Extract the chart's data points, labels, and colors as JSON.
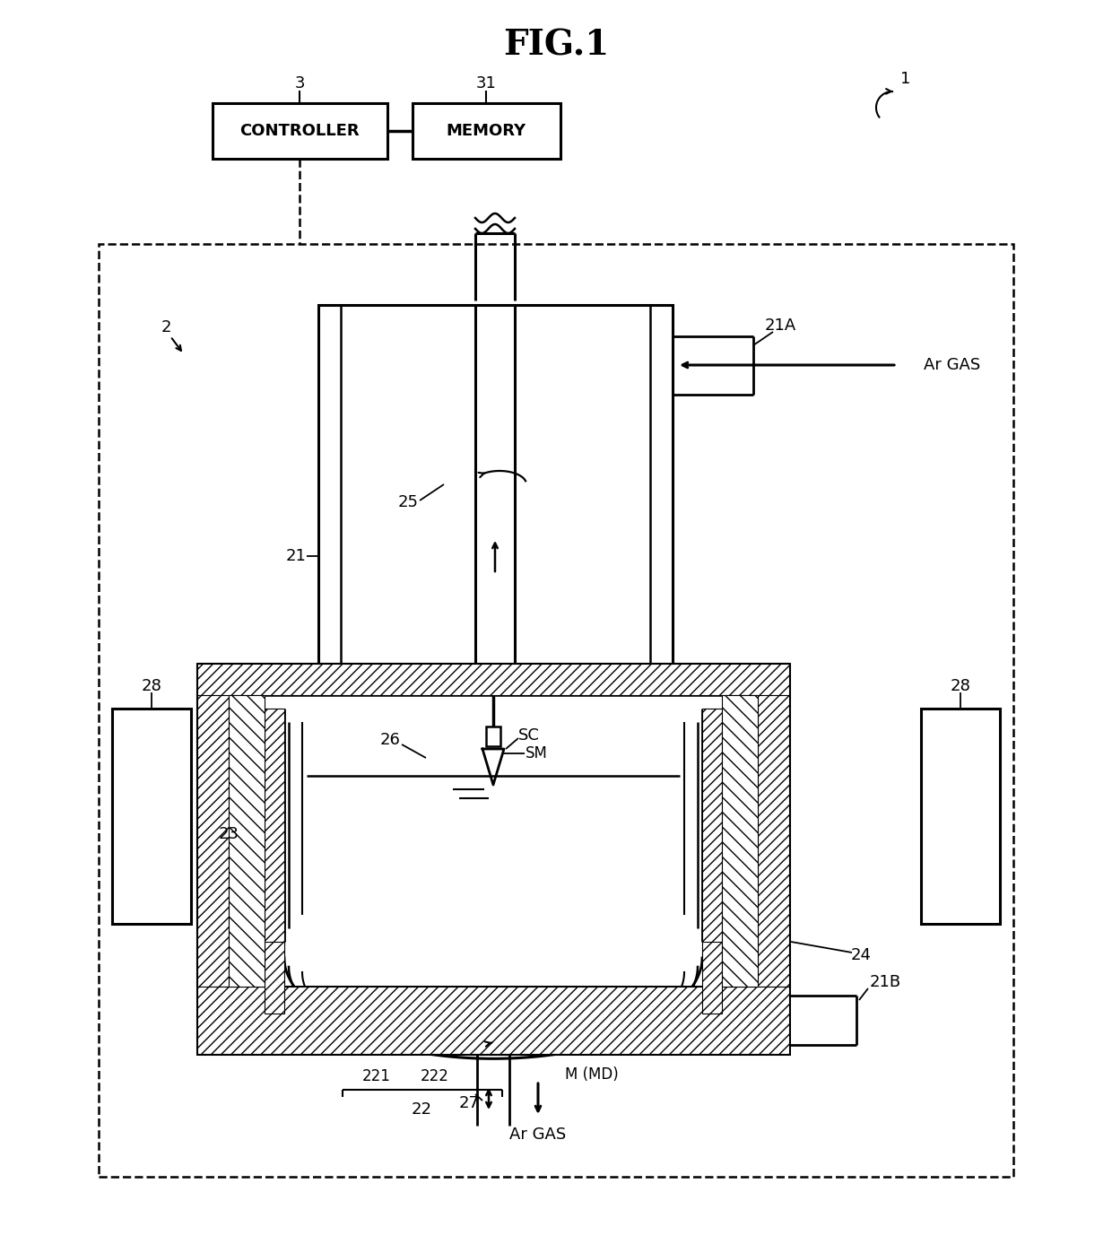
{
  "bg_color": "#ffffff",
  "labels": {
    "fig_title": "FIG.1",
    "controller": "CONTROLLER",
    "memory": "MEMORY",
    "lbl_1": "1",
    "lbl_2": "2",
    "lbl_3": "3",
    "lbl_21": "21",
    "lbl_21A": "21A",
    "lbl_21B": "21B",
    "lbl_22": "22",
    "lbl_221": "221",
    "lbl_222": "222",
    "lbl_23": "23",
    "lbl_24": "24",
    "lbl_25": "25",
    "lbl_26": "26",
    "lbl_27": "27",
    "lbl_28": "28",
    "lbl_31": "31",
    "lbl_SC": "SC",
    "lbl_SM": "SM",
    "lbl_MMD": "M (MD)",
    "lbl_ArGAS": "Ar GAS",
    "lbl_ArGAS2": "Ar GAS"
  }
}
